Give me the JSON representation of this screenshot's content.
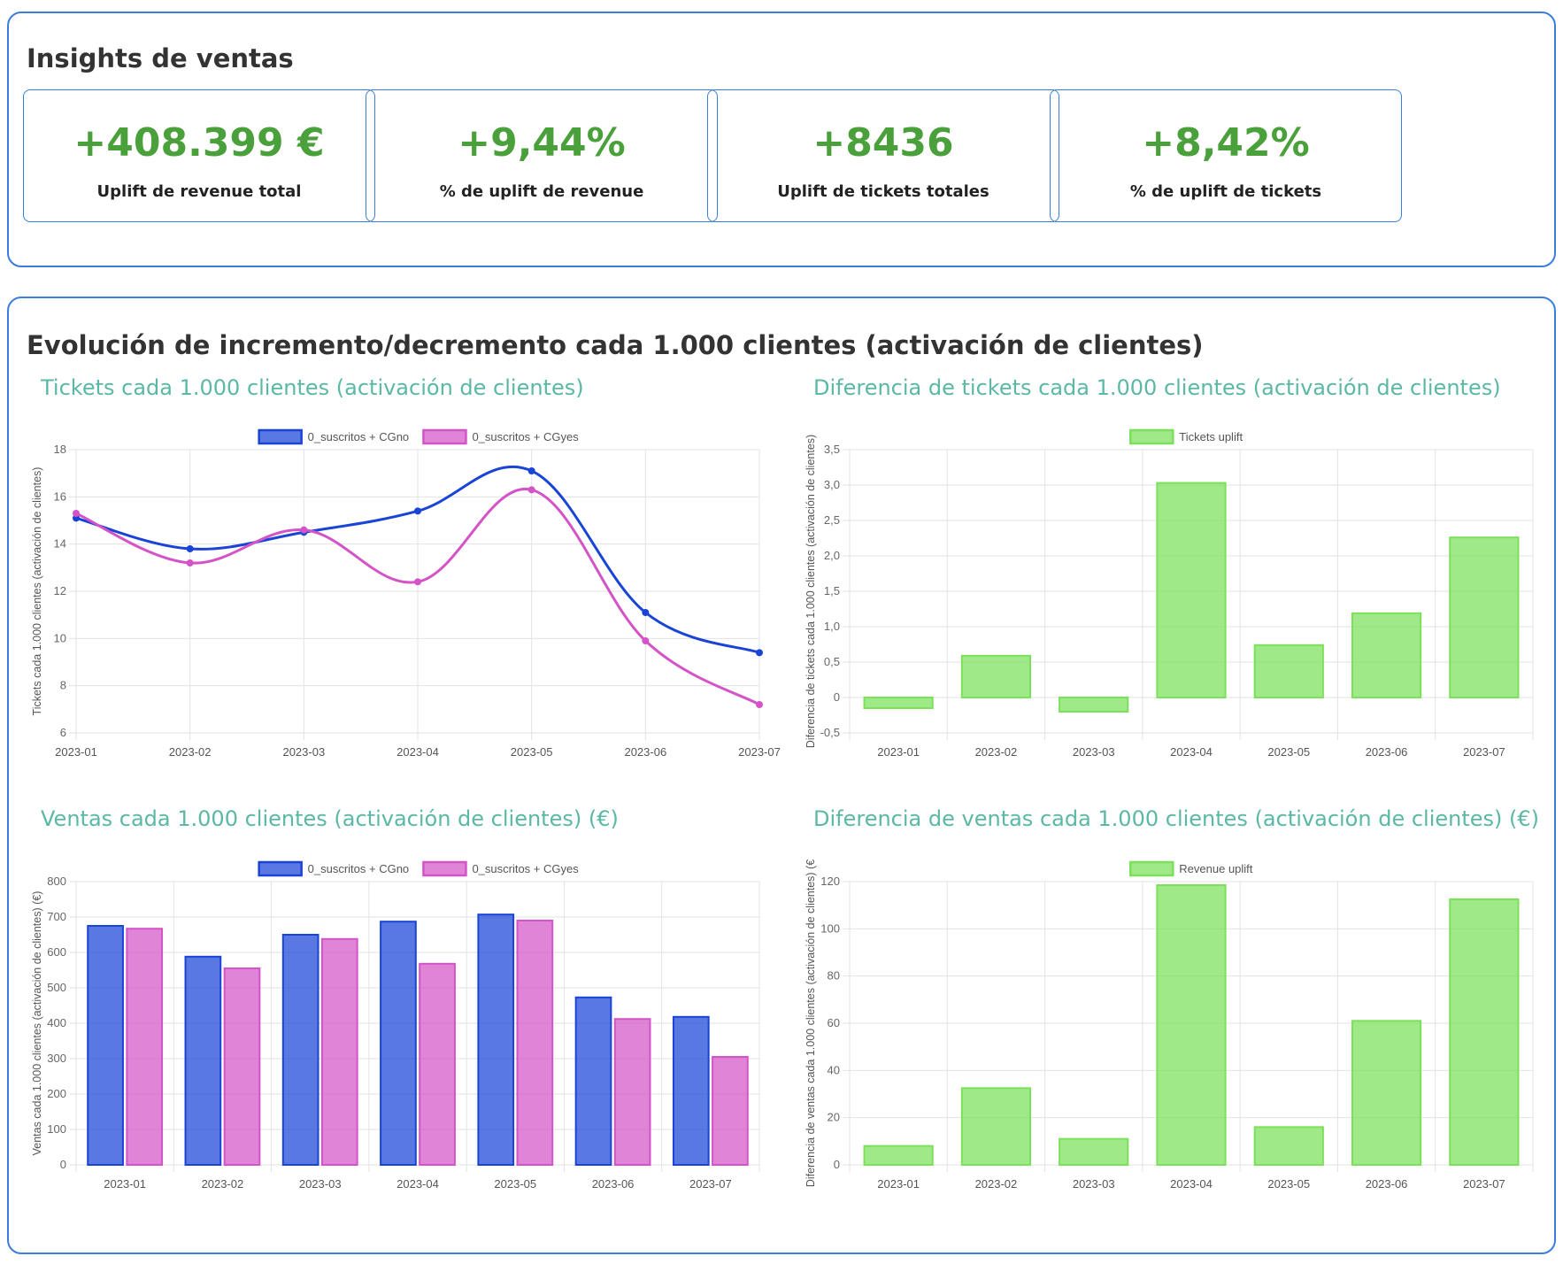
{
  "insights": {
    "title": "Insights de ventas",
    "kpis": [
      {
        "value": "+408.399 €",
        "label": "Uplift de revenue total"
      },
      {
        "value": "+9,44%",
        "label": "% de uplift de revenue"
      },
      {
        "value": "+8436",
        "label": "Uplift de tickets totales"
      },
      {
        "value": "+8,42%",
        "label": "% de uplift de tickets"
      }
    ]
  },
  "evolution": {
    "title": "Evolución de incremento/decremento cada 1.000 clientes (activación de clientes)"
  },
  "colors": {
    "panel_border": "#3b7ddd",
    "kpi_value": "#4aa03a",
    "chart_title": "#5ab8a4",
    "cgno": "#1a44d6",
    "cgyes": "#d454c8",
    "uplift": "#7be05a"
  },
  "chart_data": [
    {
      "id": "tickets",
      "type": "line",
      "title": "Tickets cada 1.000 clientes (activación de clientes)",
      "ylabel": "Tickets cada 1.000 clientes (activación de clientes)",
      "categories": [
        "2023-01",
        "2023-02",
        "2023-03",
        "2023-04",
        "2023-05",
        "2023-06",
        "2023-07"
      ],
      "series": [
        {
          "name": "0_suscritos + CGno",
          "values": [
            15.1,
            13.8,
            14.5,
            15.4,
            17.1,
            11.1,
            9.4
          ]
        },
        {
          "name": "0_suscritos + CGyes",
          "values": [
            15.3,
            13.2,
            14.6,
            12.4,
            16.3,
            9.9,
            7.2
          ]
        }
      ],
      "ylim": [
        6,
        18
      ],
      "yticks": [
        6,
        8,
        10,
        12,
        14,
        16,
        18
      ],
      "ytick_labels": [
        "6",
        "8",
        "10",
        "12",
        "14",
        "16",
        "18"
      ],
      "legend": "top",
      "grid": true
    },
    {
      "id": "tickets-diff",
      "type": "bar",
      "title": "Diferencia de tickets cada 1.000 clientes (activación de clientes)",
      "ylabel": "Diferencia de tickets cada 1.000 clientes (activación de clientes)",
      "categories": [
        "2023-01",
        "2023-02",
        "2023-03",
        "2023-04",
        "2023-05",
        "2023-06",
        "2023-07"
      ],
      "series": [
        {
          "name": "Tickets uplift",
          "values": [
            -0.15,
            0.59,
            -0.2,
            3.03,
            0.74,
            1.19,
            2.26
          ]
        }
      ],
      "ylim": [
        -0.5,
        3.5
      ],
      "yticks": [
        -0.5,
        0,
        0.5,
        1,
        1.5,
        2,
        2.5,
        3,
        3.5
      ],
      "ytick_labels": [
        "-0,5",
        "0",
        "0,5",
        "1,0",
        "1,5",
        "2,0",
        "2,5",
        "3,0",
        "3,5"
      ],
      "legend": "top",
      "grid": true
    },
    {
      "id": "sales",
      "type": "bar",
      "title": "Ventas cada 1.000 clientes (activación de clientes) (€)",
      "ylabel": "Ventas cada 1.000 clientes (activación de clientes) (€)",
      "categories": [
        "2023-01",
        "2023-02",
        "2023-03",
        "2023-04",
        "2023-05",
        "2023-06",
        "2023-07"
      ],
      "series": [
        {
          "name": "0_suscritos + CGno",
          "values": [
            675,
            588,
            650,
            687,
            707,
            473,
            418
          ]
        },
        {
          "name": "0_suscritos + CGyes",
          "values": [
            667,
            555,
            638,
            568,
            690,
            412,
            305
          ]
        }
      ],
      "ylim": [
        0,
        800
      ],
      "yticks": [
        0,
        100,
        200,
        300,
        400,
        500,
        600,
        700,
        800
      ],
      "ytick_labels": [
        "0",
        "100",
        "200",
        "300",
        "400",
        "500",
        "600",
        "700",
        "800"
      ],
      "legend": "top",
      "grid": true
    },
    {
      "id": "sales-diff",
      "type": "bar",
      "title": "Diferencia de ventas cada 1.000 clientes (activación de clientes) (€)",
      "ylabel": "Diferencia de ventas cada 1.000 clientes (activación de clientes) (€",
      "categories": [
        "2023-01",
        "2023-02",
        "2023-03",
        "2023-04",
        "2023-05",
        "2023-06",
        "2023-07"
      ],
      "series": [
        {
          "name": "Revenue uplift",
          "values": [
            8,
            32.5,
            11,
            118.5,
            16,
            61,
            112.5
          ]
        }
      ],
      "ylim": [
        0,
        120
      ],
      "yticks": [
        0,
        20,
        40,
        60,
        80,
        100,
        120
      ],
      "ytick_labels": [
        "0",
        "20",
        "40",
        "60",
        "80",
        "100",
        "120"
      ],
      "legend": "top",
      "grid": true
    }
  ]
}
